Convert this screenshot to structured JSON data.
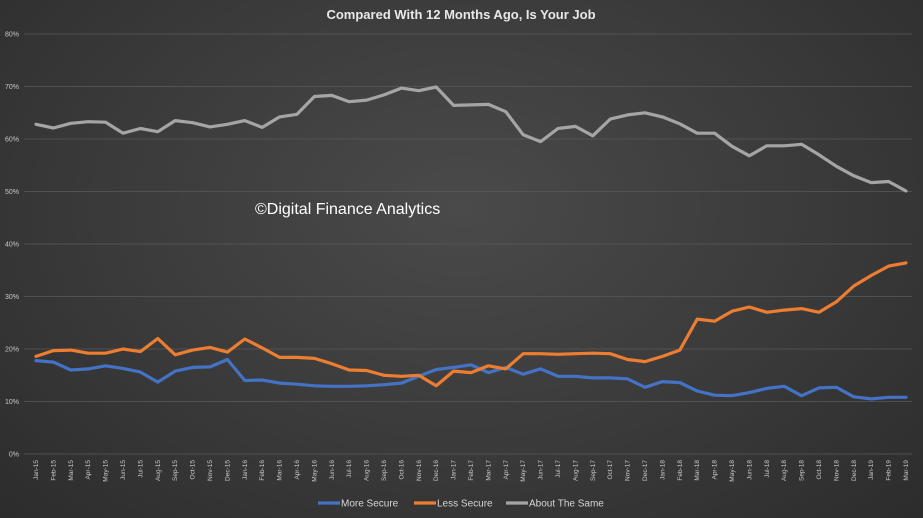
{
  "chart_data": {
    "type": "line",
    "title": "Compared With 12 Months Ago, Is Your Job",
    "watermark": "©Digital Finance Analytics",
    "ylim": [
      0,
      80
    ],
    "yticks": [
      "0%",
      "10%",
      "20%",
      "30%",
      "40%",
      "50%",
      "60%",
      "70%",
      "80%"
    ],
    "grid": true,
    "legend_position": "bottom",
    "x": [
      "Jan-15",
      "Feb-15",
      "Mar-15",
      "Apr-15",
      "May-15",
      "Jun-15",
      "Jul-15",
      "Aug-15",
      "Sep-15",
      "Oct-15",
      "Nov-15",
      "Dec-15",
      "Jan-16",
      "Feb-16",
      "Mar-16",
      "Apr-16",
      "May-16",
      "Jun-16",
      "Jul-16",
      "Aug-16",
      "Sep-16",
      "Oct-16",
      "Nov-16",
      "Dec-16",
      "Jan-17",
      "Feb-17",
      "Mar-17",
      "Apr-17",
      "May-17",
      "Jun-17",
      "Jul-17",
      "Aug-17",
      "Sep-17",
      "Oct-17",
      "Nov-17",
      "Dec-17",
      "Jan-18",
      "Feb-18",
      "Mar-18",
      "Apr-18",
      "May-18",
      "Jun-18",
      "Jul-18",
      "Aug-18",
      "Sep-18",
      "Oct-18",
      "Nov-18",
      "Dec-18",
      "Jan-19",
      "Feb-19",
      "Mar-19"
    ],
    "series": [
      {
        "name": "More Secure",
        "color": "#4472c4",
        "values": [
          17.8,
          17.5,
          16,
          16.2,
          16.8,
          16.3,
          15.6,
          13.7,
          15.8,
          16.5,
          16.6,
          18,
          14,
          14.1,
          13.5,
          13.3,
          13,
          12.9,
          12.9,
          13,
          13.2,
          13.5,
          14.8,
          16.1,
          16.5,
          17,
          15.5,
          16.5,
          15.2,
          16.2,
          14.8,
          14.8,
          14.5,
          14.5,
          14.3,
          12.7,
          13.8,
          13.6,
          12,
          11.2,
          11.1,
          11.7,
          12.5,
          12.9,
          11.1,
          12.6,
          12.7,
          10.9,
          10.5,
          10.8,
          10.8
        ]
      },
      {
        "name": "Less Secure",
        "color": "#ed7d31",
        "values": [
          18.6,
          19.7,
          19.8,
          19.2,
          19.2,
          20,
          19.5,
          22,
          18.9,
          19.8,
          20.3,
          19.4,
          21.9,
          20.2,
          18.4,
          18.4,
          18.2,
          17.2,
          16,
          15.9,
          15,
          14.8,
          15,
          13,
          15.8,
          15.5,
          16.8,
          16.2,
          19.1,
          19.1,
          19,
          19.1,
          19.2,
          19.1,
          18,
          17.6,
          18.6,
          19.8,
          25.7,
          25.3,
          27.2,
          28,
          27,
          27.4,
          27.7,
          27,
          29,
          32,
          34,
          35.8,
          36.4
        ]
      },
      {
        "name": "About The Same",
        "color": "#a5a5a5",
        "values": [
          62.8,
          62.1,
          63,
          63.3,
          63.2,
          61.1,
          62,
          61.4,
          63.5,
          63.1,
          62.3,
          62.8,
          63.5,
          62.2,
          64.2,
          64.7,
          68.1,
          68.3,
          67.1,
          67.4,
          68.4,
          69.7,
          69.2,
          69.9,
          66.4,
          66.5,
          66.6,
          65.2,
          60.8,
          59.5,
          62,
          62.4,
          60.6,
          63.8,
          64.6,
          65,
          64.2,
          62.9,
          61.1,
          61.1,
          58.6,
          56.8,
          58.7,
          58.7,
          59,
          57,
          54.8,
          53,
          51.7,
          51.9,
          50.1
        ]
      }
    ]
  }
}
